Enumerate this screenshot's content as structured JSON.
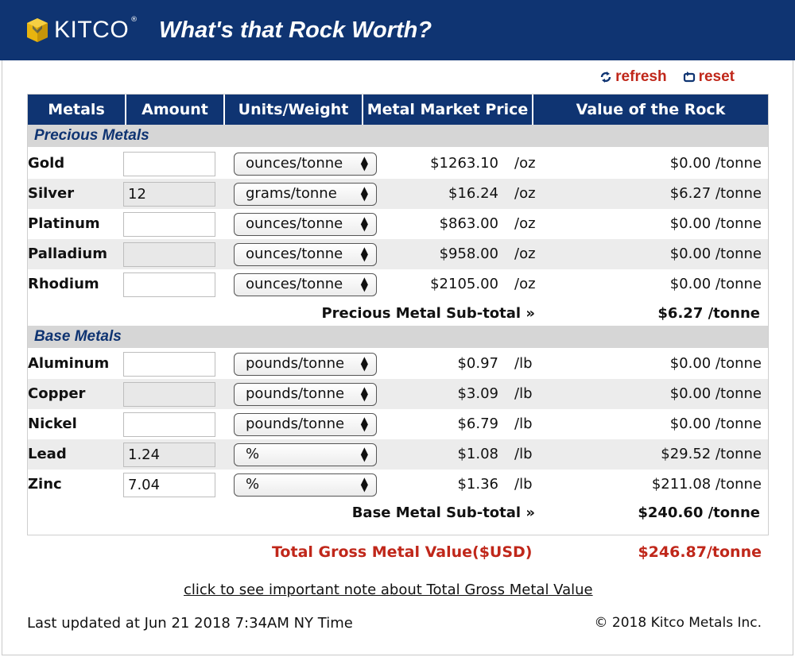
{
  "header": {
    "logo_text": "KITCO",
    "logo_reg": "®",
    "title": "What's that Rock Worth?"
  },
  "actions": {
    "refresh": "refresh",
    "reset": "reset"
  },
  "columns": [
    "Metals",
    "Amount",
    "Units/Weight",
    "Metal Market Price",
    "Value of the Rock"
  ],
  "precious": {
    "title": "Precious Metals",
    "rows": [
      {
        "metal": "Gold",
        "amount": "",
        "units": "ounces/tonne",
        "price": "$1263.10",
        "unit": "/oz",
        "value": "$0.00 /tonne"
      },
      {
        "metal": "Silver",
        "amount": "12",
        "units": "grams/tonne",
        "price": "$16.24",
        "unit": "/oz",
        "value": "$6.27 /tonne"
      },
      {
        "metal": "Platinum",
        "amount": "",
        "units": "ounces/tonne",
        "price": "$863.00",
        "unit": "/oz",
        "value": "$0.00 /tonne"
      },
      {
        "metal": "Palladium",
        "amount": "",
        "units": "ounces/tonne",
        "price": "$958.00",
        "unit": "/oz",
        "value": "$0.00 /tonne"
      },
      {
        "metal": "Rhodium",
        "amount": "",
        "units": "ounces/tonne",
        "price": "$2105.00",
        "unit": "/oz",
        "value": "$0.00 /tonne"
      }
    ],
    "subtotal_label": "Precious Metal Sub-total »",
    "subtotal_value": "$6.27 /tonne"
  },
  "base": {
    "title": "Base Metals",
    "rows": [
      {
        "metal": "Aluminum",
        "amount": "",
        "units": "pounds/tonne",
        "price": "$0.97",
        "unit": "/lb",
        "value": "$0.00 /tonne"
      },
      {
        "metal": "Copper",
        "amount": "",
        "units": "pounds/tonne",
        "price": "$3.09",
        "unit": "/lb",
        "value": "$0.00 /tonne"
      },
      {
        "metal": "Nickel",
        "amount": "",
        "units": "pounds/tonne",
        "price": "$6.79",
        "unit": "/lb",
        "value": "$0.00 /tonne"
      },
      {
        "metal": "Lead",
        "amount": "1.24",
        "units": "%",
        "price": "$1.08",
        "unit": "/lb",
        "value": "$29.52 /tonne"
      },
      {
        "metal": "Zinc",
        "amount": "7.04",
        "units": "%",
        "price": "$1.36",
        "unit": "/lb",
        "value": "$211.08 /tonne"
      }
    ],
    "subtotal_label": "Base Metal Sub-total »",
    "subtotal_value": "$240.60 /tonne"
  },
  "total": {
    "label": "Total Gross Metal Value($USD)",
    "value": "$246.87/tonne"
  },
  "note_link": "click to see important note about Total Gross Metal Value",
  "footer": {
    "updated": "Last updated at Jun 21 2018 7:34AM NY Time",
    "copyright": "© 2018 Kitco Metals Inc."
  },
  "colors": {
    "brand_navy": "#0f3472",
    "accent_red": "#c0271a",
    "logo_gold": "#e8b40f"
  }
}
